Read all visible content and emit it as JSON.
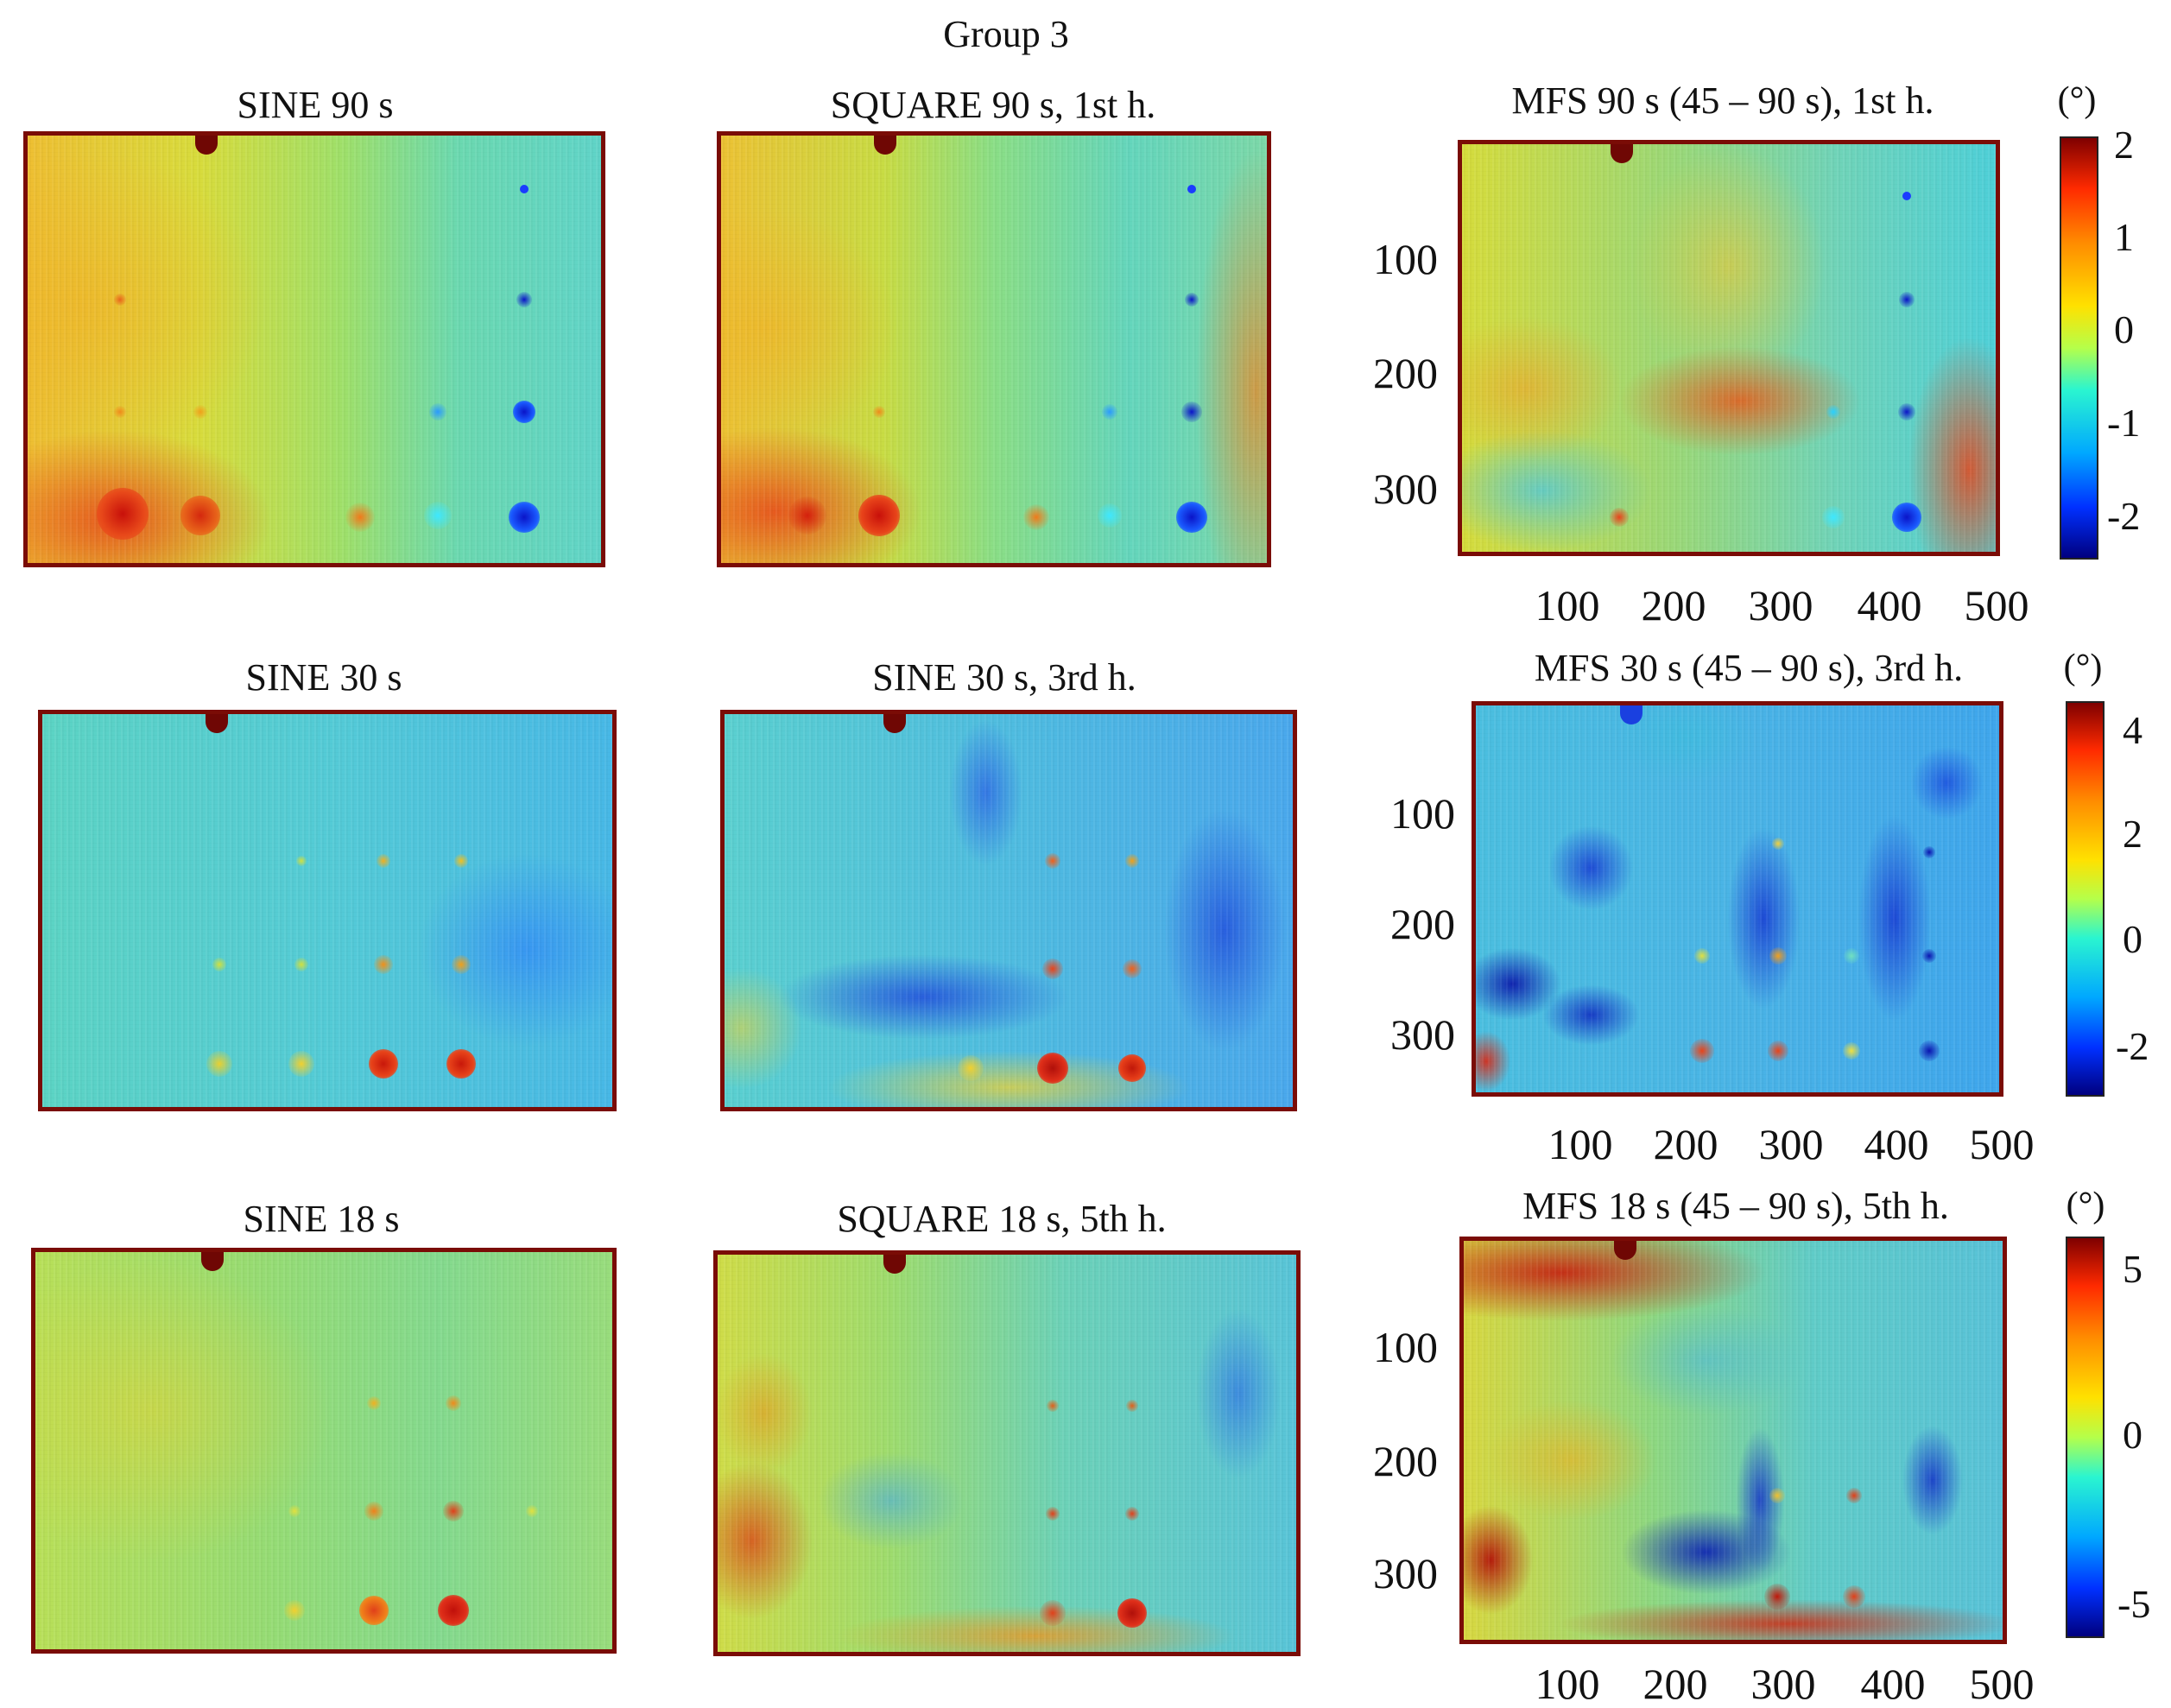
{
  "group_title": "Group 3",
  "panels": [
    {
      "title": "SINE 90 s"
    },
    {
      "title": "SQUARE 90 s, 1st h."
    },
    {
      "title": "MFS 90 s (45 – 90 s), 1st h."
    },
    {
      "title": "SINE 30 s"
    },
    {
      "title": "SINE 30 s, 3rd h."
    },
    {
      "title": "MFS 30 s (45 – 90 s), 3rd h."
    },
    {
      "title": "SINE 18 s"
    },
    {
      "title": "SQUARE 18 s, 5th h."
    },
    {
      "title": "MFS 18 s (45 – 90 s), 5th h."
    }
  ],
  "axes": {
    "y_ticks": [
      "100",
      "200",
      "300"
    ],
    "x_ticks": [
      "100",
      "200",
      "300",
      "400",
      "500"
    ]
  },
  "colorbars": [
    {
      "unit": "(°)",
      "ticks": [
        "2",
        "1",
        "0",
        "-1",
        "-2"
      ]
    },
    {
      "unit": "(°)",
      "ticks": [
        "4",
        "2",
        "0",
        "-2"
      ]
    },
    {
      "unit": "(°)",
      "ticks": [
        "5",
        "0",
        "-5"
      ]
    }
  ],
  "colors": {
    "frame": "#7a0c06",
    "yellow": "#e8e23a",
    "cyan": "#55d8c8",
    "blue": "#2a6cff",
    "red": "#e8341a"
  }
}
